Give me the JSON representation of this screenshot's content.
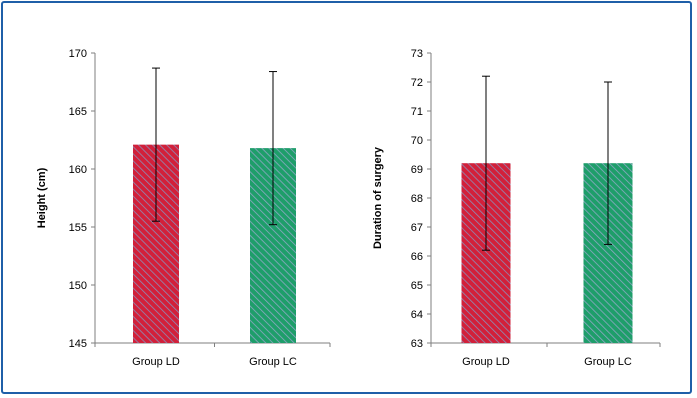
{
  "chart_data": [
    {
      "type": "bar",
      "categories": [
        "Group LD",
        "Group LC"
      ],
      "values": [
        162.1,
        161.8
      ],
      "error_upper": [
        168.7,
        168.4
      ],
      "error_lower": [
        155.5,
        155.2
      ],
      "ylabel": "Height (cm)",
      "xlabel": "",
      "ylim": [
        145,
        170
      ],
      "yticks": [
        145,
        150,
        155,
        160,
        165,
        170
      ],
      "colors": [
        "#d2203a",
        "#1e9e6a"
      ],
      "grid": false
    },
    {
      "type": "bar",
      "categories": [
        "Group LD",
        "Group LC"
      ],
      "values": [
        69.2,
        69.2
      ],
      "error_upper": [
        72.2,
        72.0
      ],
      "error_lower": [
        66.2,
        66.4
      ],
      "ylabel": "Duration of surgery",
      "xlabel": "",
      "ylim": [
        63,
        73
      ],
      "yticks": [
        63,
        64,
        65,
        66,
        67,
        68,
        69,
        70,
        71,
        72,
        73
      ],
      "colors": [
        "#d2203a",
        "#1e9e6a"
      ],
      "grid": false
    }
  ]
}
